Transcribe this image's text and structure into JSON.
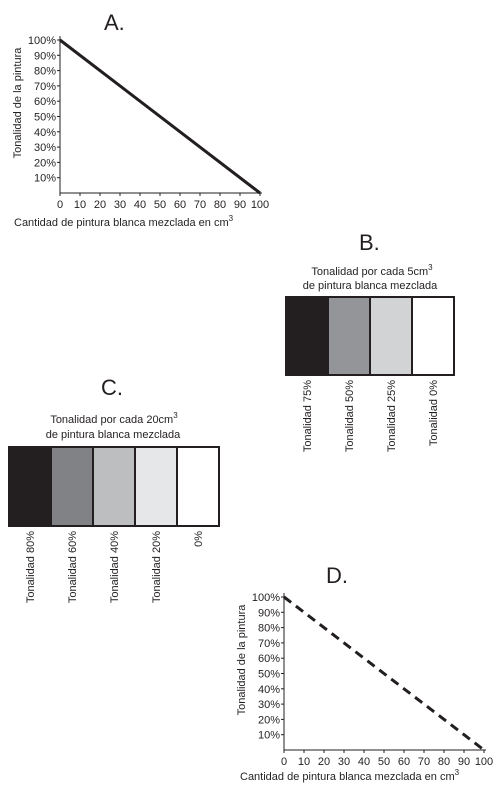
{
  "panel_a": {
    "letter": "A.",
    "chart_data": {
      "type": "line",
      "x": [
        0,
        100
      ],
      "y": [
        100,
        0
      ],
      "line_style": "solid",
      "xlabel": "Cantidad de pintura blanca mezclada en cm",
      "xlabel_sup": "3",
      "ylabel": "Tonalidad de la pintura",
      "xticks": [
        "0",
        "10",
        "20",
        "30",
        "40",
        "50",
        "60",
        "70",
        "80",
        "90",
        "100"
      ],
      "yticks": [
        "10%",
        "20%",
        "30%",
        "40%",
        "50%",
        "60%",
        "70%",
        "80%",
        "90%",
        "100%"
      ],
      "xlim": [
        0,
        100
      ],
      "ylim": [
        0,
        100
      ]
    }
  },
  "panel_b": {
    "letter": "B.",
    "caption_line1": "Tonalidad por cada 5cm",
    "caption_sup": "3",
    "caption_line2": "de pintura blanca mezclada",
    "swatches": [
      {
        "label": "Tonalidad 75%",
        "color": "#231f20"
      },
      {
        "label": "Tonalidad 50%",
        "color": "#939598"
      },
      {
        "label": "Tonalidad 25%",
        "color": "#d1d3d4"
      },
      {
        "label": "Tonalidad 0%",
        "color": "#ffffff"
      }
    ]
  },
  "panel_c": {
    "letter": "C.",
    "caption_line1": "Tonalidad por cada 20cm",
    "caption_sup": "3",
    "caption_line2": "de pintura blanca mezclada",
    "swatches": [
      {
        "label": "Tonalidad 80%",
        "color": "#231f20"
      },
      {
        "label": "Tonalidad 60%",
        "color": "#808285"
      },
      {
        "label": "Tonalidad 40%",
        "color": "#bcbec0"
      },
      {
        "label": "Tonalidad 20%",
        "color": "#e6e7e8"
      },
      {
        "label": "0%",
        "color": "#ffffff"
      }
    ]
  },
  "panel_d": {
    "letter": "D.",
    "chart_data": {
      "type": "line",
      "x": [
        0,
        100
      ],
      "y": [
        100,
        0
      ],
      "line_style": "dashed",
      "xlabel": "Cantidad de pintura blanca mezclada en cm",
      "xlabel_sup": "3",
      "ylabel": "Tonalidad de la pintura",
      "xticks": [
        "0",
        "10",
        "20",
        "30",
        "40",
        "50",
        "60",
        "70",
        "80",
        "90",
        "100"
      ],
      "yticks": [
        "10%",
        "20%",
        "30%",
        "40%",
        "50%",
        "60%",
        "70%",
        "80%",
        "90%",
        "100%"
      ],
      "xlim": [
        0,
        100
      ],
      "ylim": [
        0,
        100
      ]
    }
  }
}
